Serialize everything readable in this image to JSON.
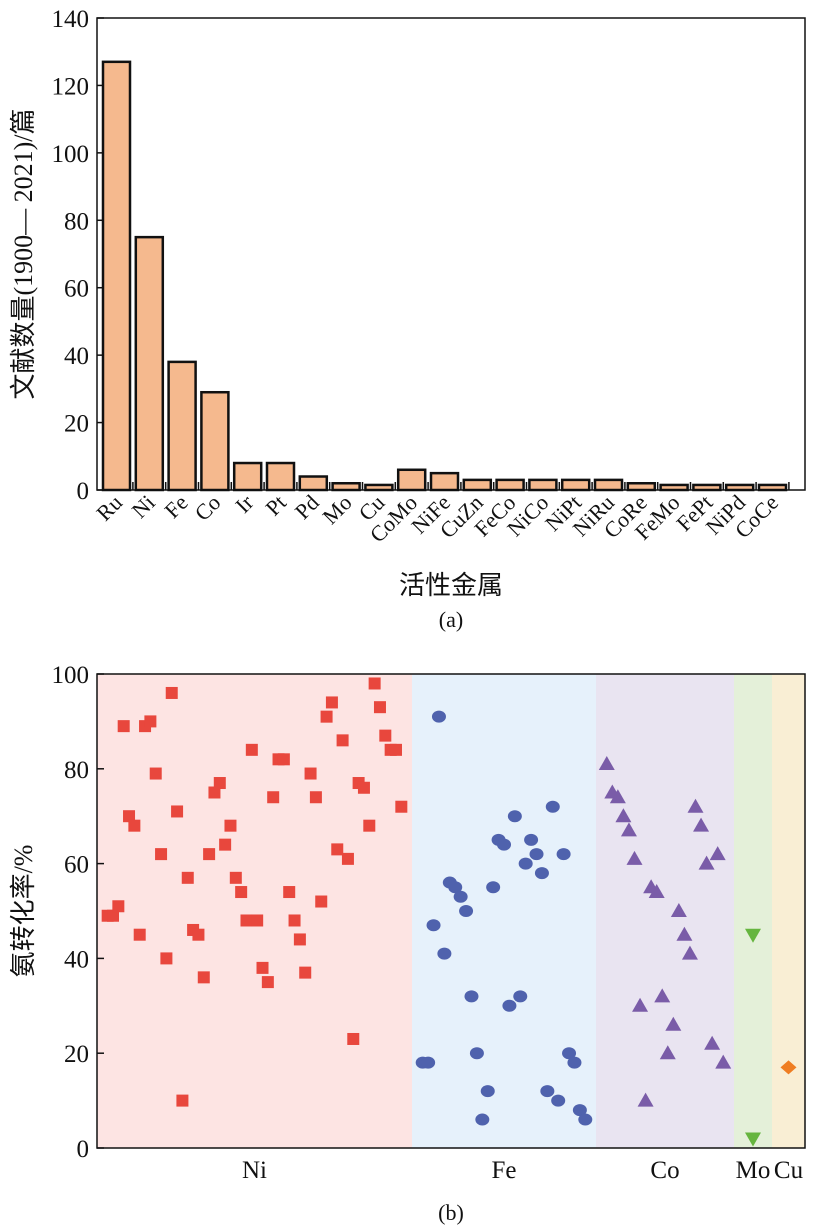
{
  "chart_data": [
    {
      "id": "a",
      "type": "bar",
      "panel_label": "(a)",
      "xlabel": "活性金属",
      "ylabel": "文献数量(1900— 2021)/篇",
      "ylim": [
        0,
        140
      ],
      "yticks": [
        0,
        20,
        40,
        60,
        80,
        100,
        120,
        140
      ],
      "categories": [
        "Ru",
        "Ni",
        "Fe",
        "Co",
        "Ir",
        "Pt",
        "Pd",
        "Mo",
        "Cu",
        "CoMo",
        "NiFe",
        "CuZn",
        "FeCo",
        "NiCo",
        "NiPt",
        "NiRu",
        "CoRe",
        "FeMo",
        "FePt",
        "NiPd",
        "CoCe"
      ],
      "values": [
        127,
        75,
        38,
        29,
        8,
        8,
        4,
        2,
        1.5,
        6,
        5,
        3,
        3,
        3,
        3,
        3,
        2,
        1.5,
        1.5,
        1.5,
        1.5
      ],
      "colors": {
        "bar_fill": "#f5b98e",
        "bar_stroke": "#111111"
      }
    },
    {
      "id": "b",
      "type": "scatter",
      "panel_label": "(b)",
      "ylabel": "氨转化率/%",
      "ylim": [
        0,
        100
      ],
      "yticks": [
        0,
        20,
        40,
        60,
        80,
        100
      ],
      "groups": [
        {
          "name": "Ni",
          "marker": "square",
          "color": "#e8473d",
          "bg": "#fde4e3",
          "values": [
            49,
            49,
            51,
            89,
            70,
            68,
            45,
            89,
            90,
            79,
            62,
            40,
            96,
            71,
            10,
            57,
            46,
            45,
            36,
            62,
            75,
            77,
            64,
            68,
            57,
            54,
            48,
            84,
            48,
            38,
            35,
            74,
            82,
            82,
            54,
            48,
            44,
            37,
            79,
            74,
            52,
            91,
            94,
            63,
            86,
            61,
            23,
            77,
            76,
            68,
            98,
            93,
            87,
            84,
            84,
            72
          ]
        },
        {
          "name": "Fe",
          "marker": "circle",
          "color": "#4f62ad",
          "bg": "#e6f1fb",
          "values": [
            18,
            18,
            47,
            91,
            41,
            56,
            55,
            53,
            50,
            32,
            20,
            6,
            12,
            55,
            65,
            64,
            30,
            70,
            32,
            60,
            65,
            62,
            58,
            12,
            72,
            10,
            62,
            20,
            18,
            8,
            6
          ]
        },
        {
          "name": "Co",
          "marker": "triangle-up",
          "color": "#7a5ca8",
          "bg": "#e9e4f1",
          "values": [
            81,
            75,
            74,
            70,
            67,
            61,
            30,
            10,
            55,
            54,
            32,
            20,
            26,
            50,
            45,
            41,
            72,
            68,
            60,
            22,
            62,
            18
          ]
        },
        {
          "name": "Mo",
          "marker": "triangle-down",
          "color": "#66b53f",
          "bg": "#e4f0d9",
          "values": [
            45,
            2
          ]
        },
        {
          "name": "Cu",
          "marker": "diamond",
          "color": "#ef7d22",
          "bg": "#f9eed4",
          "values": [
            17
          ]
        }
      ]
    }
  ]
}
